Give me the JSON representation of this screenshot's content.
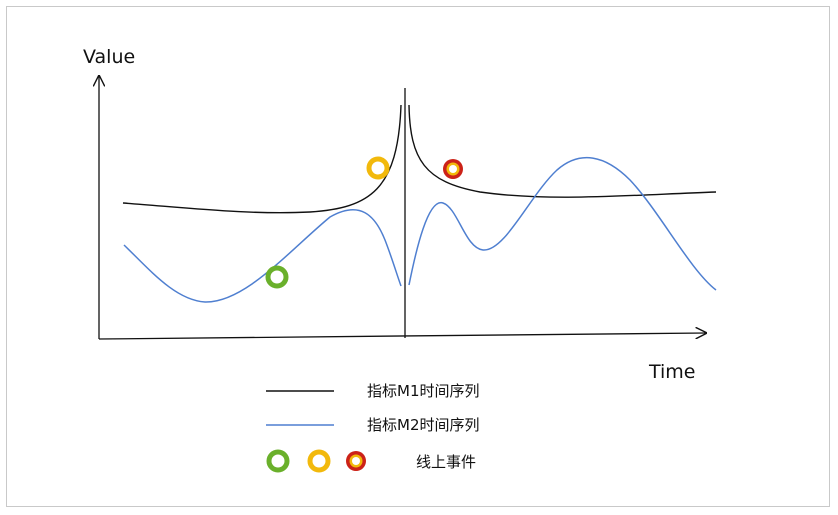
{
  "diagram": {
    "y_axis_label": "Value",
    "x_axis_label": "Time"
  },
  "legend": {
    "m1_label": "指标M1时间序列",
    "m2_label": "指标M2时间序列",
    "events_label": "线上事件"
  },
  "colors": {
    "m1": "#111111",
    "m2": "#4f7fd0",
    "event_green": "#6ab02b",
    "event_yellow": "#f2b90c",
    "event_red": "#cc2218",
    "event_red_ring": "#f2b90c"
  }
}
